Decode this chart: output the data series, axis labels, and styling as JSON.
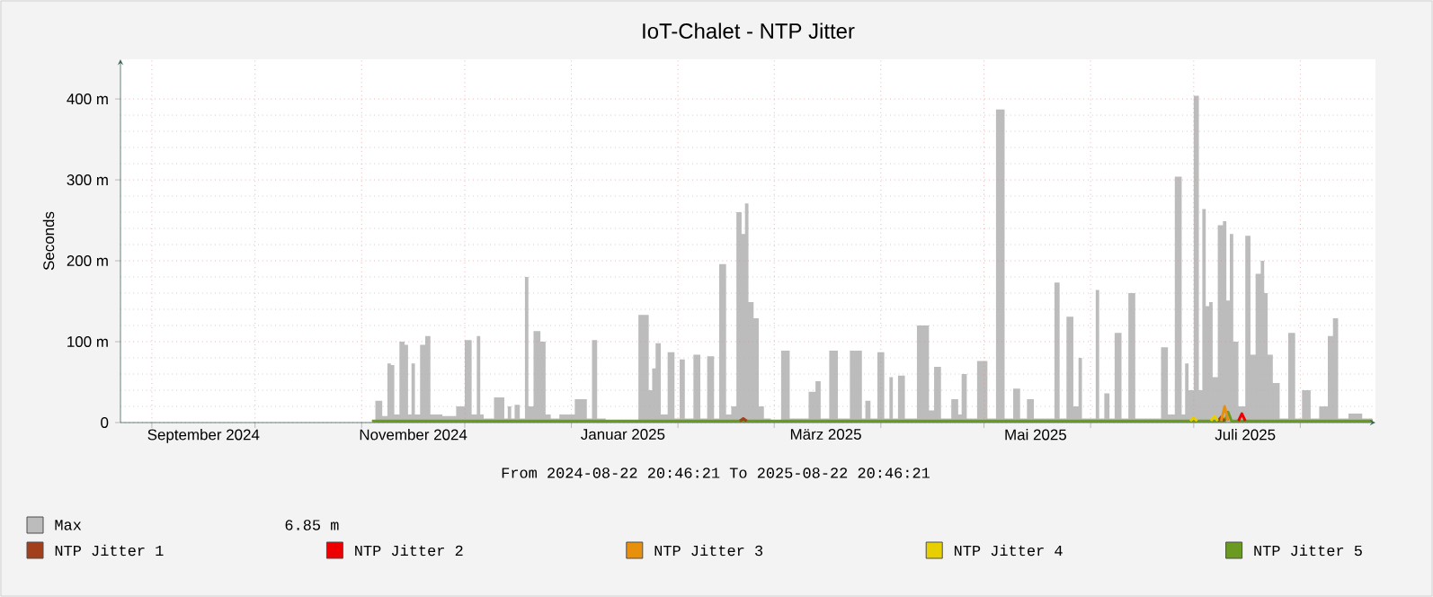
{
  "chart_data": {
    "type": "area",
    "title": "IoT-Chalet - NTP Jitter",
    "ylabel": "Seconds",
    "annotations": [
      "From 2024-08-22 20:46:21 To 2025-08-22 20:46:21",
      "6.85 m"
    ],
    "xlim": [
      "2024-08-22T20:46",
      "2025-08-22T20:46"
    ],
    "xticks": [
      {
        "value": "2024-09-01",
        "label": null
      },
      {
        "value": "2024-10-01",
        "label": null
      },
      {
        "value": "2024-11-01",
        "label": null
      },
      {
        "value": "2024-12-01",
        "label": null
      },
      {
        "value": "2025-01-01",
        "label": null
      },
      {
        "value": "2025-02-01",
        "label": null
      },
      {
        "value": "2025-03-01",
        "label": null
      },
      {
        "value": "2025-04-01",
        "label": null
      },
      {
        "value": "2025-05-01",
        "label": null
      },
      {
        "value": "2025-06-01",
        "label": null
      },
      {
        "value": "2025-07-01",
        "label": null
      },
      {
        "value": "2025-08-01",
        "label": null
      },
      {
        "value": "2024-09-16",
        "label": "September 2024"
      },
      {
        "value": "2024-11-16",
        "label": "November 2024"
      },
      {
        "value": "2025-01-16",
        "label": "Januar 2025"
      },
      {
        "value": "2025-03-16",
        "label": "März 2025"
      },
      {
        "value": "2025-05-16",
        "label": "Mai 2025"
      },
      {
        "value": "2025-07-16",
        "label": "Juli 2025"
      }
    ],
    "ylim": [
      0,
      449
    ],
    "yticks": [
      0,
      {
        "value": 100,
        "label": "100 m"
      },
      {
        "value": 200,
        "label": "200 m"
      },
      {
        "value": 300,
        "label": "300 m"
      },
      {
        "value": 400,
        "label": "400 m"
      }
    ],
    "grid": true,
    "legend": "bottom",
    "series": [
      {
        "name": "Max",
        "color": "#bcbcbc",
        "x": [
          "2024-11-04",
          "2024-11-06",
          "2024-11-08",
          "2024-11-09",
          "2024-11-10",
          "2024-11-11",
          "2024-11-13",
          "2024-11-14",
          "2024-11-15",
          "2024-11-16",
          "2024-11-17",
          "2024-11-19",
          "2024-11-20",
          "2024-11-22",
          "2024-11-27",
          "2024-11-30",
          "2024-12-02",
          "2024-12-04",
          "2024-12-05",
          "2024-12-06",
          "2024-12-07",
          "2024-12-12",
          "2024-12-13",
          "2024-12-14",
          "2024-12-15",
          "2024-12-16",
          "2024-12-18",
          "2024-12-19",
          "2024-12-20",
          "2024-12-22",
          "2024-12-24",
          "2024-12-25",
          "2024-12-27",
          "2024-12-30",
          "2025-01-05",
          "2025-01-06",
          "2025-01-08",
          "2025-01-09",
          "2025-01-13",
          "2025-01-18",
          "2025-01-23",
          "2025-01-24",
          "2025-01-25",
          "2025-01-26",
          "2025-01-28",
          "2025-01-30",
          "2025-02-01",
          "2025-02-02",
          "2025-02-04",
          "2025-02-07",
          "2025-02-08",
          "2025-02-11",
          "2025-02-12",
          "2025-02-14",
          "2025-02-16",
          "2025-02-17",
          "2025-02-19",
          "2025-02-20",
          "2025-02-21",
          "2025-02-22",
          "2025-02-24",
          "2025-02-25",
          "2025-02-27",
          "2025-03-01",
          "2025-03-05",
          "2025-03-06",
          "2025-03-10",
          "2025-03-12",
          "2025-03-14",
          "2025-03-15",
          "2025-03-19",
          "2025-03-20",
          "2025-03-26",
          "2025-03-27",
          "2025-03-28",
          "2025-03-30",
          "2025-04-01",
          "2025-04-03",
          "2025-04-04",
          "2025-04-05",
          "2025-04-07",
          "2025-04-09",
          "2025-04-14",
          "2025-04-16",
          "2025-04-17",
          "2025-04-20",
          "2025-04-23",
          "2025-04-24",
          "2025-04-25",
          "2025-04-27",
          "2025-05-01",
          "2025-05-03",
          "2025-05-06",
          "2025-05-08",
          "2025-05-11",
          "2025-05-12",
          "2025-05-15",
          "2025-05-16",
          "2025-05-21",
          "2025-05-22",
          "2025-05-24",
          "2025-05-26",
          "2025-05-28",
          "2025-05-29",
          "2025-05-30",
          "2025-06-02",
          "2025-06-03",
          "2025-06-04",
          "2025-06-06",
          "2025-06-07",
          "2025-06-09",
          "2025-06-11",
          "2025-06-13",
          "2025-06-15",
          "2025-06-20",
          "2025-06-23",
          "2025-06-24",
          "2025-06-27",
          "2025-06-28",
          "2025-06-29",
          "2025-06-30",
          "2025-07-02",
          "2025-07-03",
          "2025-07-04",
          "2025-07-05",
          "2025-07-06",
          "2025-07-07",
          "2025-07-09",
          "2025-07-10",
          "2025-07-11",
          "2025-07-12",
          "2025-07-13",
          "2025-07-15",
          "2025-07-17",
          "2025-07-18",
          "2025-07-20",
          "2025-07-21",
          "2025-07-22",
          "2025-07-23",
          "2025-07-25",
          "2025-07-27",
          "2025-07-30",
          "2025-07-31",
          "2025-08-03",
          "2025-08-05",
          "2025-08-08",
          "2025-08-10",
          "2025-08-11",
          "2025-08-13",
          "2025-08-17",
          "2025-08-21",
          "2025-08-22"
        ],
        "values": [
          0,
          27,
          8,
          73,
          71,
          10,
          100,
          96,
          10,
          73,
          10,
          96,
          107,
          10,
          8,
          20,
          102,
          10,
          107,
          10,
          5,
          31,
          5,
          20,
          5,
          22,
          5,
          180,
          20,
          113,
          100,
          10,
          5,
          10,
          29,
          5,
          102,
          5,
          3,
          3,
          133,
          40,
          67,
          98,
          10,
          87,
          5,
          78,
          5,
          84,
          5,
          82,
          5,
          196,
          10,
          20,
          260,
          233,
          271,
          149,
          129,
          20,
          5,
          3,
          89,
          5,
          5,
          38,
          51,
          5,
          89,
          5,
          89,
          5,
          27,
          5,
          87,
          5,
          56,
          5,
          58,
          5,
          120,
          15,
          69,
          5,
          29,
          10,
          60,
          5,
          76,
          5,
          387,
          5,
          42,
          5,
          29,
          5,
          5,
          173,
          5,
          131,
          20,
          80,
          5,
          5,
          164,
          5,
          36,
          5,
          111,
          5,
          160,
          5,
          5,
          93,
          10,
          304,
          10,
          73,
          40,
          404,
          40,
          264,
          144,
          149,
          56,
          244,
          249,
          151,
          233,
          100,
          20,
          231,
          84,
          184,
          200,
          160,
          84,
          49,
          5,
          111,
          5,
          40,
          5,
          20,
          107,
          129,
          5,
          11,
          5,
          5
        ]
      },
      {
        "name": "NTP Jitter 1",
        "type": "line",
        "color": "#a3401c",
        "x": [
          "2025-02-19",
          "2025-02-20",
          "2025-02-21",
          "2025-03-01",
          "2025-07-08",
          "2025-07-09",
          "2025-07-10"
        ],
        "values": [
          2,
          5,
          2,
          null,
          2,
          7,
          2
        ]
      },
      {
        "name": "NTP Jitter 2",
        "type": "line",
        "color": "#ee0000",
        "x": [
          "2025-07-14",
          "2025-07-15",
          "2025-07-16"
        ],
        "values": [
          2,
          11,
          2
        ]
      },
      {
        "name": "NTP Jitter 3",
        "type": "line",
        "color": "#e8900c",
        "x": [
          "2025-07-09",
          "2025-07-10",
          "2025-07-11"
        ],
        "values": [
          2,
          20,
          2
        ]
      },
      {
        "name": "NTP Jitter 4",
        "type": "line",
        "color": "#e8d000",
        "x": [
          "2025-06-30",
          "2025-07-01",
          "2025-07-02",
          "2025-07-04",
          "2025-07-06",
          "2025-07-07",
          "2025-07-08"
        ],
        "values": [
          2,
          6,
          2,
          null,
          2,
          8,
          2
        ]
      },
      {
        "name": "NTP Jitter 5",
        "type": "line",
        "color": "#6a9a1f",
        "x": [
          "2024-11-04",
          "2025-07-10",
          "2025-07-11",
          "2025-07-12",
          "2025-08-22"
        ],
        "values": [
          2,
          2,
          13,
          2,
          2
        ]
      }
    ]
  }
}
